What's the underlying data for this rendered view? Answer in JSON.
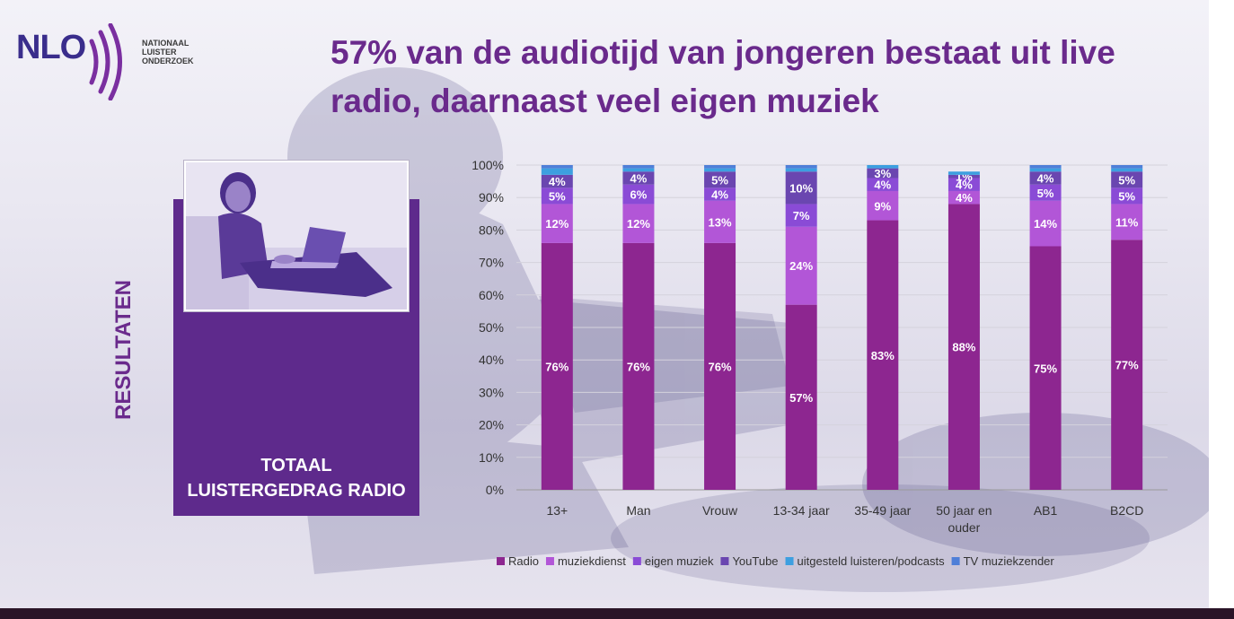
{
  "logo": {
    "wordmark": "NLO",
    "lines": [
      "NATIONAAL",
      "LUISTER",
      "ONDERZOEK"
    ]
  },
  "title": {
    "line1": "57% van de audiotijd van jongeren bestaat uit live",
    "line2": "radio, daarnaast veel eigen muziek"
  },
  "side_label": "RESULTATEN",
  "box": {
    "line1": "TOTAAL",
    "line2": "LUISTERGEDRAG RADIO",
    "photo_alt": "young man with headphones using a laptop"
  },
  "colors": {
    "title": "#6a2a8c",
    "box": "#5e2a8c",
    "logo": "#3a2d8c",
    "logo_arc": "#7a2fa0"
  },
  "chart_data": {
    "type": "bar",
    "stacked": true,
    "categories": [
      [
        "13+"
      ],
      [
        "Man"
      ],
      [
        "Vrouw"
      ],
      [
        "13-34 jaar"
      ],
      [
        "35-49 jaar"
      ],
      [
        "50 jaar en",
        "ouder"
      ],
      [
        "AB1"
      ],
      [
        "B2CD"
      ]
    ],
    "series": [
      {
        "name": "Radio",
        "color": "#8d2690",
        "values": [
          76,
          76,
          76,
          57,
          83,
          88,
          75,
          77
        ],
        "labels": [
          "76%",
          "76%",
          "76%",
          "57%",
          "83%",
          "88%",
          "75%",
          "77%"
        ]
      },
      {
        "name": "muziekdienst",
        "color": "#b256d7",
        "values": [
          12,
          12,
          13,
          24,
          9,
          4,
          14,
          11
        ],
        "labels": [
          "12%",
          "12%",
          "13%",
          "24%",
          "9%",
          "4%",
          "14%",
          "11%"
        ]
      },
      {
        "name": "eigen muziek",
        "color": "#8a4bd6",
        "values": [
          5,
          6,
          4,
          7,
          4,
          4,
          5,
          5
        ],
        "labels": [
          "5%",
          "6%",
          "4%",
          "7%",
          "4%",
          "4%",
          "5%",
          "5%"
        ]
      },
      {
        "name": "YouTube",
        "color": "#6a46b0",
        "values": [
          4,
          4,
          5,
          10,
          3,
          1,
          4,
          5
        ],
        "labels": [
          "4%",
          "4%",
          "5%",
          "10%",
          "3%",
          "1%",
          "4%",
          "5%"
        ]
      },
      {
        "name": "uitgesteld luisteren/podcasts",
        "color": "#3d9fe0",
        "values": [
          2,
          1,
          1,
          1,
          1,
          1,
          1,
          1
        ],
        "labels": []
      },
      {
        "name": "TV muziekzender",
        "color": "#4f7fd8",
        "values": [
          1,
          1,
          1,
          1,
          0,
          0,
          1,
          1
        ],
        "labels": []
      }
    ],
    "y_ticks": [
      "0%",
      "10%",
      "20%",
      "30%",
      "40%",
      "50%",
      "60%",
      "70%",
      "80%",
      "90%",
      "100%"
    ],
    "ylim": [
      0,
      100
    ],
    "grid": true,
    "legend_position": "bottom",
    "title": "",
    "xlabel": "",
    "ylabel": ""
  }
}
